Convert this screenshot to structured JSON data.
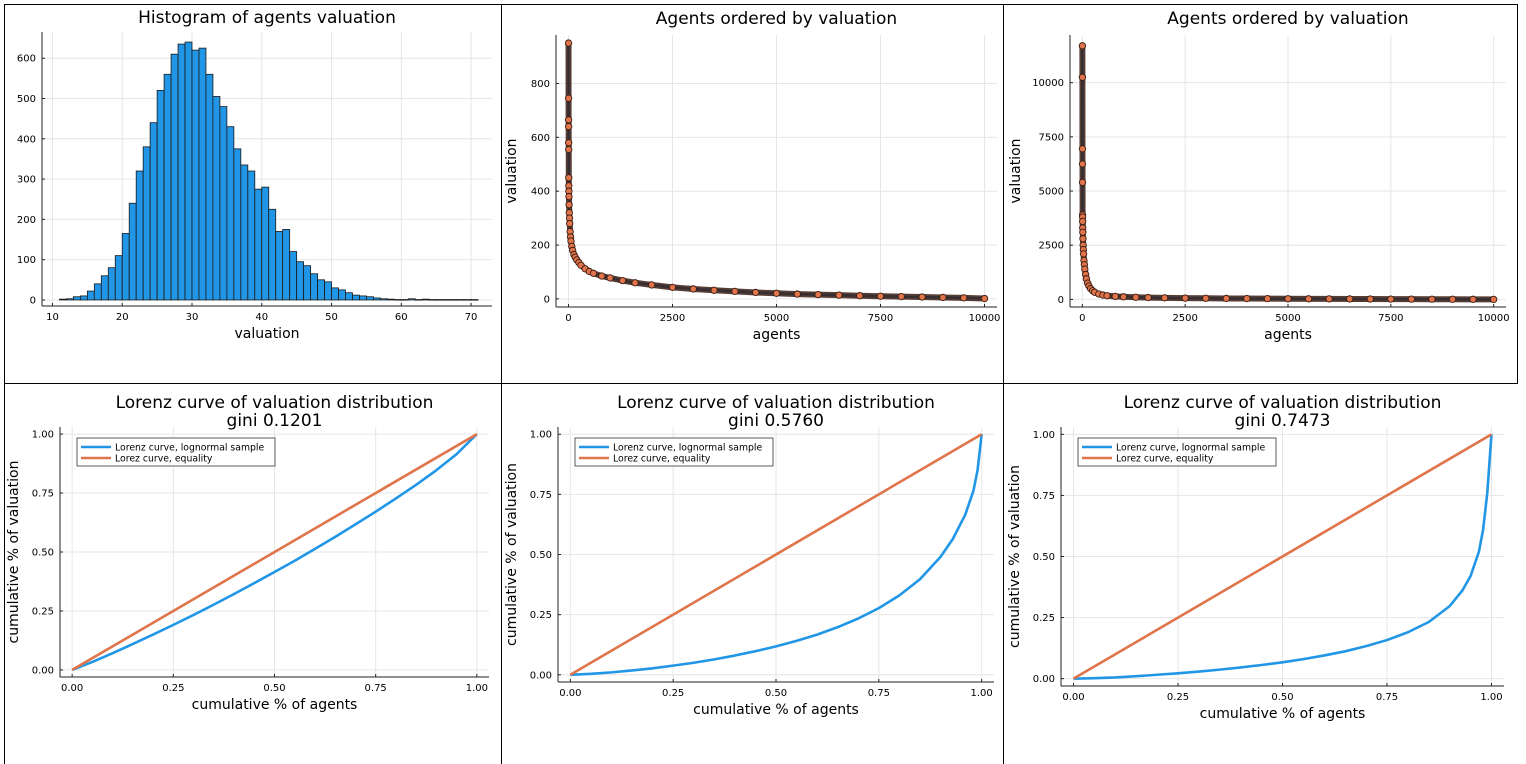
{
  "colors": {
    "blue": "#2196e6",
    "orange": "#e0744a",
    "marker": "#e0744a",
    "grid": "#e6e6e6"
  },
  "panels": [
    {
      "title": "Histogram of agents valuation",
      "chart_data": {
        "type": "bar",
        "title": "Histogram of agents valuation",
        "xlabel": "valuation",
        "ylabel": "",
        "xlim": [
          8.5,
          73
        ],
        "ylim": [
          -15,
          665
        ],
        "xticks": [
          10,
          20,
          30,
          40,
          50,
          60,
          70
        ],
        "yticks": [
          0,
          100,
          200,
          300,
          400,
          500,
          600
        ],
        "bin_width": 1,
        "bin_starts": [
          11,
          12,
          13,
          14,
          15,
          16,
          17,
          18,
          19,
          20,
          21,
          22,
          23,
          24,
          25,
          26,
          27,
          28,
          29,
          30,
          31,
          32,
          33,
          34,
          35,
          36,
          37,
          38,
          39,
          40,
          41,
          42,
          43,
          44,
          45,
          46,
          47,
          48,
          49,
          50,
          51,
          52,
          53,
          54,
          55,
          56,
          57,
          58,
          59,
          60,
          61,
          62,
          63,
          64,
          65,
          66,
          67,
          68,
          69,
          70
        ],
        "values": [
          2,
          3,
          8,
          10,
          22,
          40,
          60,
          80,
          110,
          165,
          240,
          320,
          380,
          440,
          520,
          560,
          610,
          635,
          640,
          620,
          625,
          560,
          505,
          480,
          430,
          375,
          335,
          320,
          275,
          280,
          225,
          170,
          175,
          120,
          95,
          85,
          65,
          50,
          45,
          30,
          25,
          18,
          12,
          10,
          8,
          5,
          3,
          2,
          1,
          1,
          3,
          1,
          2,
          1,
          1,
          1,
          1,
          1,
          1,
          1
        ],
        "grid": true
      }
    },
    {
      "title": "Agents ordered by valuation",
      "chart_data": {
        "type": "scatter",
        "title": "Agents ordered by valuation",
        "xlabel": "agents",
        "ylabel": "valuation",
        "xlim": [
          -300,
          10300
        ],
        "ylim": [
          -30,
          980
        ],
        "xticks": [
          0,
          2500,
          5000,
          7500,
          10000
        ],
        "yticks": [
          0,
          200,
          400,
          600,
          800
        ],
        "x": [
          1,
          2,
          3,
          4,
          5,
          6,
          7,
          8,
          10,
          12,
          15,
          20,
          25,
          30,
          40,
          50,
          60,
          80,
          100,
          130,
          160,
          200,
          250,
          300,
          400,
          500,
          600,
          800,
          1000,
          1300,
          1600,
          2000,
          2500,
          3000,
          3500,
          4000,
          4500,
          5000,
          5500,
          6000,
          6500,
          7000,
          7500,
          8000,
          8500,
          9000,
          9500,
          10000
        ],
        "y": [
          950,
          745,
          665,
          640,
          580,
          555,
          450,
          420,
          400,
          380,
          350,
          320,
          300,
          280,
          250,
          230,
          215,
          195,
          180,
          165,
          155,
          145,
          135,
          125,
          112,
          102,
          95,
          85,
          78,
          68,
          60,
          52,
          43,
          37,
          32,
          28,
          24,
          21,
          18,
          16,
          14,
          12,
          10,
          8.5,
          7,
          5.5,
          4,
          1.5
        ],
        "grid": true
      }
    },
    {
      "title": "Agents ordered by valuation",
      "chart_data": {
        "type": "scatter",
        "title": "Agents ordered by valuation",
        "xlabel": "agents",
        "ylabel": "valuation",
        "xlim": [
          -300,
          10300
        ],
        "ylim": [
          -350,
          12200
        ],
        "xticks": [
          0,
          2500,
          5000,
          7500,
          10000
        ],
        "yticks": [
          0,
          2500,
          5000,
          7500,
          10000
        ],
        "x": [
          1,
          2,
          3,
          4,
          5,
          6,
          7,
          8,
          10,
          12,
          15,
          20,
          25,
          30,
          40,
          50,
          60,
          80,
          100,
          130,
          160,
          200,
          250,
          300,
          400,
          500,
          600,
          800,
          1000,
          1300,
          1600,
          2000,
          2500,
          3000,
          3500,
          4000,
          4500,
          5000,
          5500,
          6000,
          6500,
          7000,
          7500,
          8000,
          8500,
          9000,
          9500,
          10000
        ],
        "y": [
          11700,
          10250,
          6950,
          6250,
          5400,
          3900,
          3800,
          3600,
          3300,
          3100,
          2800,
          2500,
          2300,
          2100,
          1800,
          1600,
          1400,
          1150,
          950,
          750,
          620,
          500,
          400,
          330,
          250,
          200,
          170,
          140,
          120,
          100,
          85,
          72,
          60,
          52,
          45,
          40,
          35,
          31,
          27,
          24,
          21,
          18,
          15,
          12,
          9,
          6,
          4,
          1
        ],
        "grid": true
      }
    },
    {
      "title": "Lorenz curve of valuation distribution",
      "subtitle": "gini 0.1201",
      "chart_data": {
        "type": "line",
        "title": "Lorenz curve of valuation distribution",
        "subtitle": "gini 0.1201",
        "xlabel": "cumulative % of agents",
        "ylabel": "cumulative % of valuation",
        "xlim": [
          -0.03,
          1.03
        ],
        "ylim": [
          -0.03,
          1.03
        ],
        "xticks": [
          0.0,
          0.25,
          0.5,
          0.75,
          1.0
        ],
        "yticks": [
          0.0,
          0.25,
          0.5,
          0.75,
          1.0
        ],
        "tick_labels": [
          "0.00",
          "0.25",
          "0.50",
          "0.75",
          "1.00"
        ],
        "legend": "top-left",
        "series": [
          {
            "name": "Lorenz curve, lognormal sample",
            "color": "#2196e6",
            "x": [
              0,
              0.05,
              0.1,
              0.15,
              0.2,
              0.25,
              0.3,
              0.35,
              0.4,
              0.45,
              0.5,
              0.55,
              0.6,
              0.65,
              0.7,
              0.75,
              0.8,
              0.85,
              0.9,
              0.95,
              1.0
            ],
            "y": [
              0,
              0.034,
              0.071,
              0.11,
              0.15,
              0.191,
              0.233,
              0.277,
              0.322,
              0.368,
              0.415,
              0.463,
              0.513,
              0.564,
              0.617,
              0.671,
              0.727,
              0.785,
              0.847,
              0.915,
              1.0
            ]
          },
          {
            "name": "Lorez curve, equality",
            "color": "#e0744a",
            "x": [
              0,
              1
            ],
            "y": [
              0,
              1
            ]
          }
        ],
        "grid": true
      }
    },
    {
      "title": "Lorenz curve of valuation distribution",
      "subtitle": "gini 0.5760",
      "chart_data": {
        "type": "line",
        "title": "Lorenz curve of valuation distribution",
        "subtitle": "gini 0.5760",
        "xlabel": "cumulative % of agents",
        "ylabel": "cumulative % of valuation",
        "xlim": [
          -0.03,
          1.03
        ],
        "ylim": [
          -0.03,
          1.03
        ],
        "xticks": [
          0.0,
          0.25,
          0.5,
          0.75,
          1.0
        ],
        "yticks": [
          0.0,
          0.25,
          0.5,
          0.75,
          1.0
        ],
        "tick_labels": [
          "0.00",
          "0.25",
          "0.50",
          "0.75",
          "1.00"
        ],
        "legend": "top-left",
        "series": [
          {
            "name": "Lorenz curve, lognormal sample",
            "color": "#2196e6",
            "x": [
              0,
              0.05,
              0.1,
              0.15,
              0.2,
              0.25,
              0.3,
              0.35,
              0.4,
              0.45,
              0.5,
              0.55,
              0.6,
              0.65,
              0.7,
              0.75,
              0.8,
              0.85,
              0.9,
              0.93,
              0.96,
              0.98,
              0.99,
              1.0
            ],
            "y": [
              0,
              0.004,
              0.01,
              0.018,
              0.027,
              0.038,
              0.05,
              0.064,
              0.08,
              0.098,
              0.118,
              0.141,
              0.167,
              0.198,
              0.234,
              0.277,
              0.33,
              0.397,
              0.49,
              0.565,
              0.665,
              0.765,
              0.85,
              1.0
            ]
          },
          {
            "name": "Lorez curve, equality",
            "color": "#e0744a",
            "x": [
              0,
              1
            ],
            "y": [
              0,
              1
            ]
          }
        ],
        "grid": true
      }
    },
    {
      "title": "Lorenz curve of valuation distribution",
      "subtitle": "gini 0.7473",
      "chart_data": {
        "type": "line",
        "title": "Lorenz curve of valuation distribution",
        "subtitle": "gini 0.7473",
        "xlabel": "cumulative % of agents",
        "ylabel": "cumulative % of valuation",
        "xlim": [
          -0.03,
          1.03
        ],
        "ylim": [
          -0.03,
          1.03
        ],
        "xticks": [
          0.0,
          0.25,
          0.5,
          0.75,
          1.0
        ],
        "yticks": [
          0.0,
          0.25,
          0.5,
          0.75,
          1.0
        ],
        "tick_labels": [
          "0.00",
          "0.25",
          "0.50",
          "0.75",
          "1.00"
        ],
        "legend": "top-left",
        "series": [
          {
            "name": "Lorenz curve, lognormal sample",
            "color": "#2196e6",
            "x": [
              0,
              0.05,
              0.1,
              0.15,
              0.2,
              0.25,
              0.3,
              0.35,
              0.4,
              0.45,
              0.5,
              0.55,
              0.6,
              0.65,
              0.7,
              0.75,
              0.8,
              0.85,
              0.9,
              0.93,
              0.95,
              0.97,
              0.98,
              0.99,
              1.0
            ],
            "y": [
              0,
              0.002,
              0.005,
              0.01,
              0.016,
              0.022,
              0.029,
              0.037,
              0.046,
              0.056,
              0.067,
              0.08,
              0.095,
              0.112,
              0.133,
              0.158,
              0.19,
              0.232,
              0.297,
              0.36,
              0.42,
              0.52,
              0.61,
              0.76,
              1.0
            ]
          },
          {
            "name": "Lorez curve, equality",
            "color": "#e0744a",
            "x": [
              0,
              1
            ],
            "y": [
              0,
              1
            ]
          }
        ],
        "grid": true
      }
    }
  ]
}
